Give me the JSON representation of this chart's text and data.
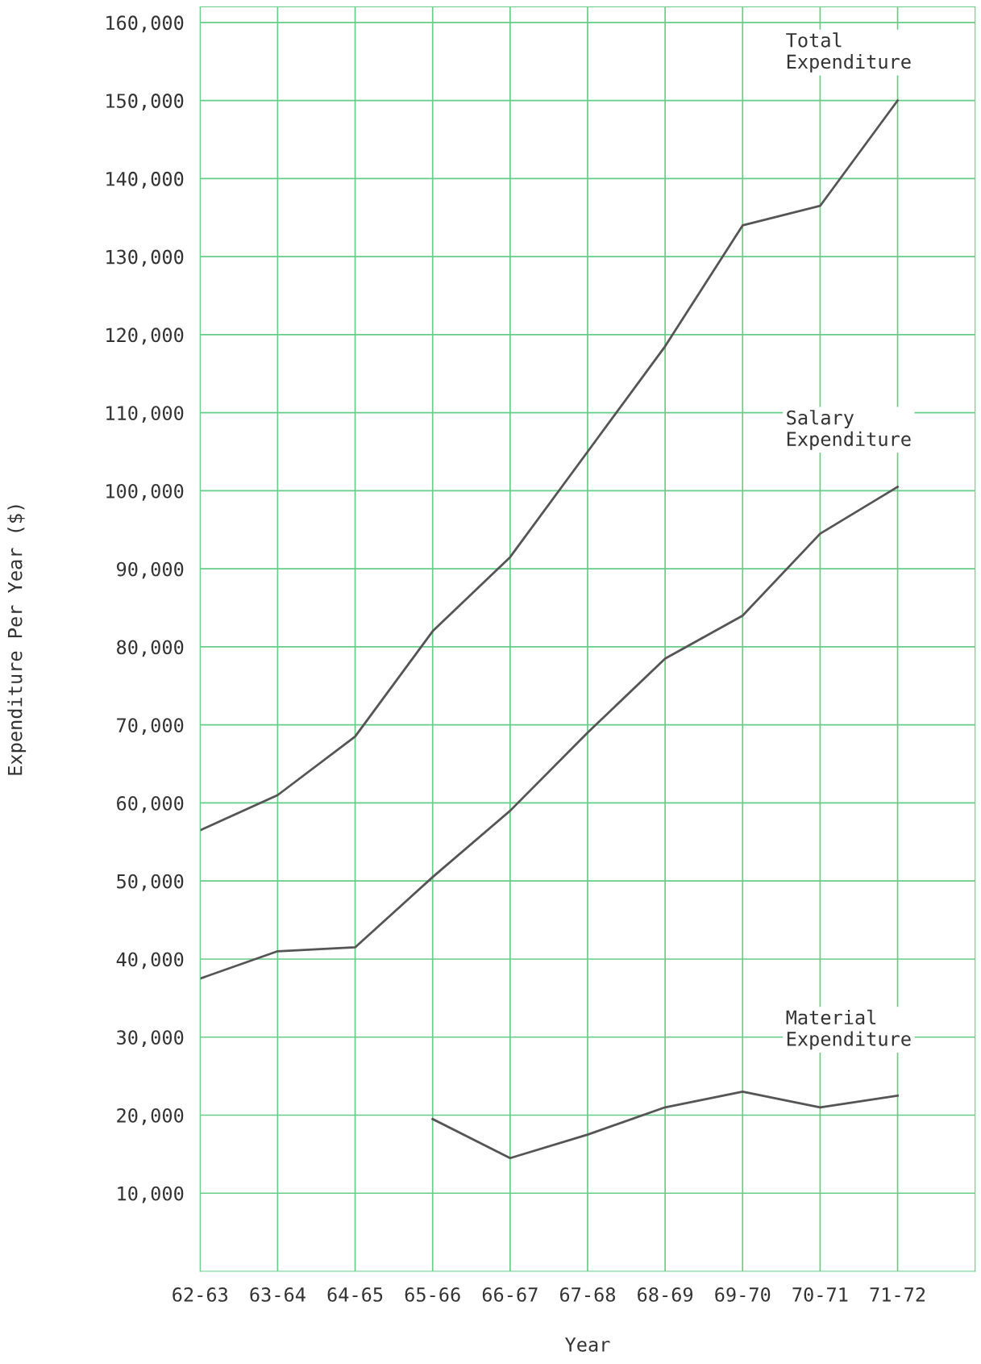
{
  "chart_data": {
    "type": "line",
    "xlabel": "Year",
    "ylabel": "Expenditure Per Year ($)",
    "categories": [
      "62-63",
      "63-64",
      "64-65",
      "65-66",
      "66-67",
      "67-68",
      "68-69",
      "69-70",
      "70-71",
      "71-72"
    ],
    "series": [
      {
        "name": "Total\nExpenditure",
        "color": "#555555",
        "values": [
          56500,
          61000,
          68500,
          82000,
          91500,
          105000,
          118500,
          134000,
          136500,
          150000
        ]
      },
      {
        "name": "Salary\nExpenditure",
        "color": "#555555",
        "values": [
          37500,
          41000,
          41500,
          50500,
          59000,
          69000,
          78500,
          84000,
          94500,
          100500
        ]
      },
      {
        "name": "Material\nExpenditure",
        "color": "#555555",
        "values": [
          null,
          null,
          null,
          19500,
          14500,
          17500,
          21000,
          23000,
          21000,
          22500
        ]
      }
    ],
    "ylim": [
      0,
      162000
    ],
    "yticks": [
      {
        "value": 10000,
        "label": "10,000"
      },
      {
        "value": 20000,
        "label": "20,000"
      },
      {
        "value": 30000,
        "label": "30,000"
      },
      {
        "value": 40000,
        "label": "40,000"
      },
      {
        "value": 50000,
        "label": "50,000"
      },
      {
        "value": 60000,
        "label": "60,000"
      },
      {
        "value": 70000,
        "label": "70,000"
      },
      {
        "value": 80000,
        "label": "80,000"
      },
      {
        "value": 90000,
        "label": "90,000"
      },
      {
        "value": 100000,
        "label": "100,000"
      },
      {
        "value": 110000,
        "label": "110,000"
      },
      {
        "value": 120000,
        "label": "120,000"
      },
      {
        "value": 130000,
        "label": "130,000"
      },
      {
        "value": 140000,
        "label": "140,000"
      },
      {
        "value": 150000,
        "label": "150,000"
      },
      {
        "value": 160000,
        "label": "160,000"
      }
    ],
    "grid": true,
    "marker": "none",
    "line_style": "solid"
  }
}
